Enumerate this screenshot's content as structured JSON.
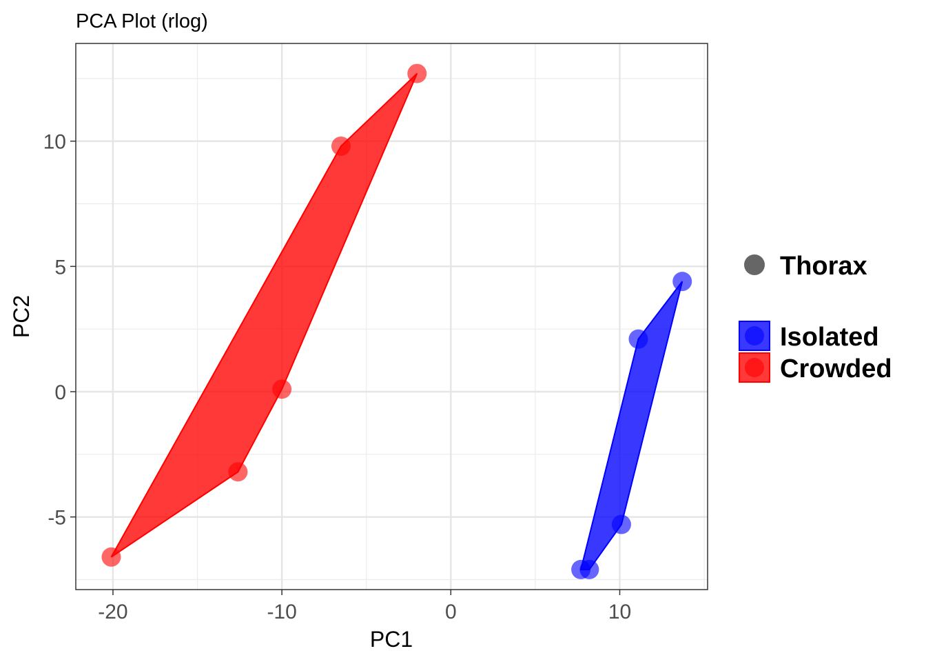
{
  "chart_data": {
    "type": "scatter",
    "title": "PCA Plot (rlog)",
    "xlabel": "PC1",
    "ylabel": "PC2",
    "xlim": [
      -22.2,
      15.2
    ],
    "ylim": [
      -7.9,
      13.9
    ],
    "x_ticks": [
      -20,
      -10,
      0,
      10
    ],
    "x_tick_labels": [
      "-20",
      "-10",
      "0",
      "10"
    ],
    "y_ticks": [
      -5,
      0,
      5,
      10
    ],
    "y_tick_labels": [
      "-5",
      "0",
      "5",
      "10"
    ],
    "grid": true,
    "legend_position": "right",
    "shape_legend": {
      "label": "Thorax",
      "color": "#666666"
    },
    "series": [
      {
        "name": "Isolated",
        "color": "#0000ff",
        "points": [
          {
            "x": 7.7,
            "y": -7.1
          },
          {
            "x": 8.2,
            "y": -7.1
          },
          {
            "x": 10.1,
            "y": -5.3
          },
          {
            "x": 11.1,
            "y": 2.1
          },
          {
            "x": 13.7,
            "y": 4.4
          }
        ],
        "hull": [
          [
            7.7,
            -7.1
          ],
          [
            8.2,
            -7.1
          ],
          [
            10.1,
            -5.3
          ],
          [
            13.7,
            4.4
          ],
          [
            11.1,
            2.1
          ]
        ]
      },
      {
        "name": "Crowded",
        "color": "#ff0000",
        "points": [
          {
            "x": -20.1,
            "y": -6.6
          },
          {
            "x": -12.6,
            "y": -3.2
          },
          {
            "x": -10.0,
            "y": 0.1
          },
          {
            "x": -6.5,
            "y": 9.8
          },
          {
            "x": -2.0,
            "y": 12.7
          }
        ],
        "hull": [
          [
            -20.1,
            -6.6
          ],
          [
            -12.6,
            -3.2
          ],
          [
            -10.0,
            0.1
          ],
          [
            -2.0,
            12.7
          ],
          [
            -6.5,
            9.8
          ]
        ]
      }
    ]
  }
}
